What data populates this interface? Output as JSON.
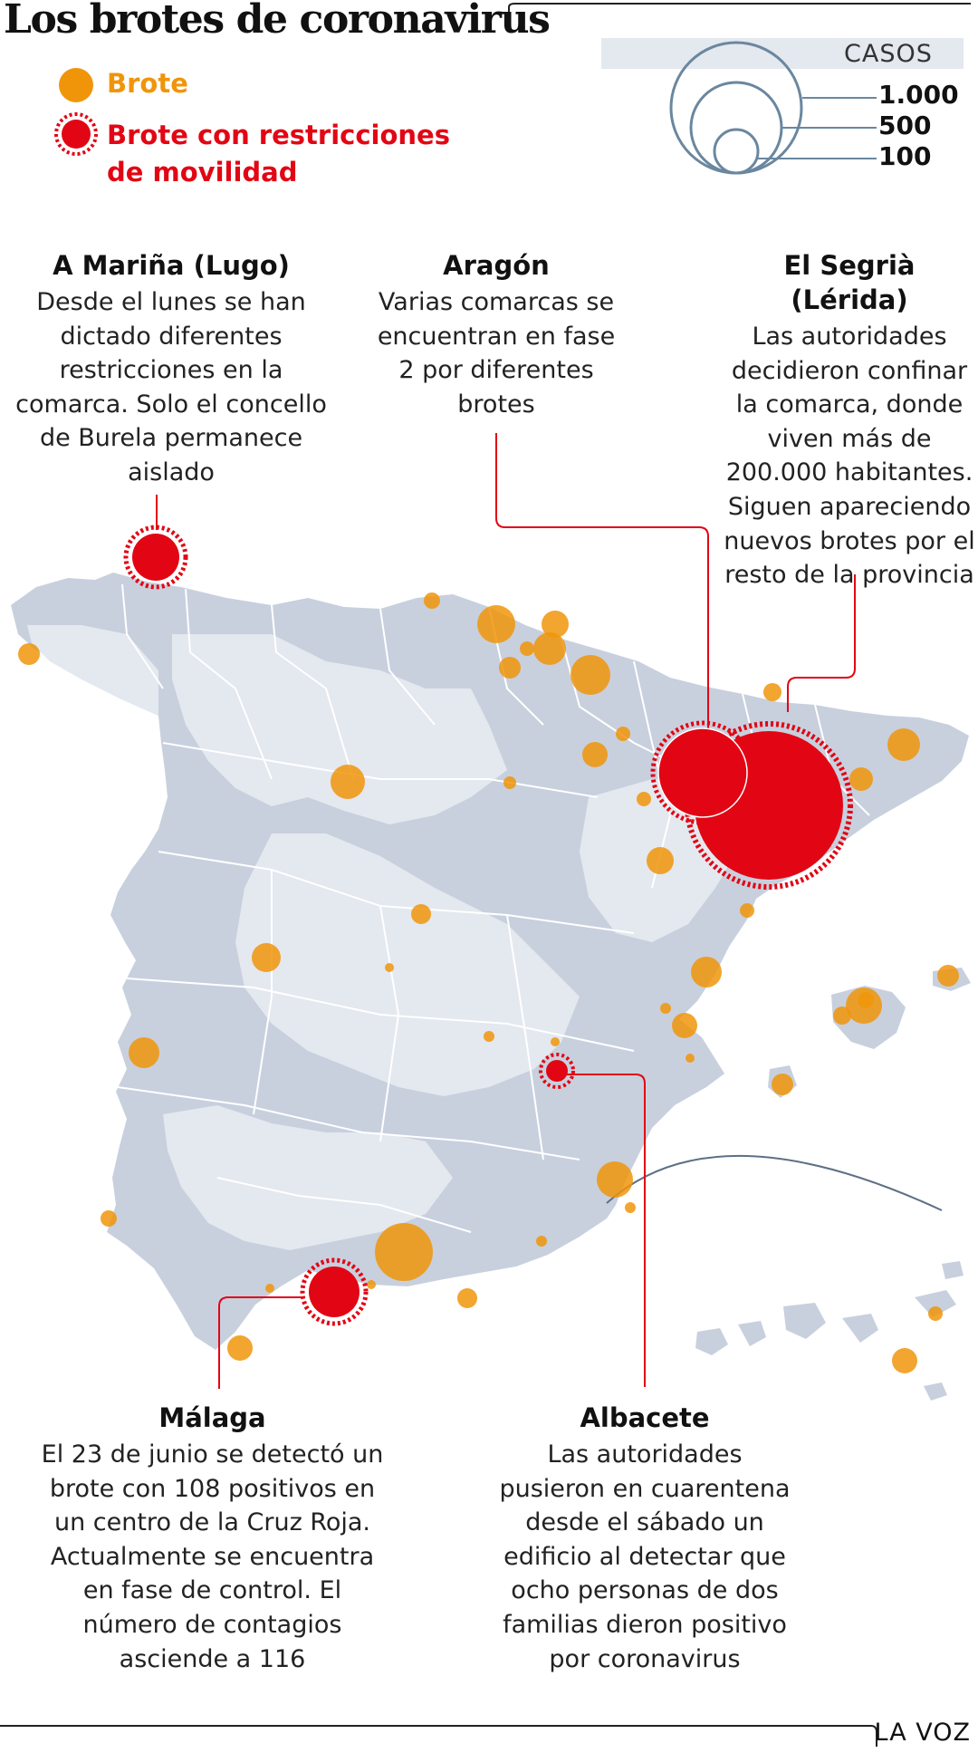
{
  "title": "Los brotes de coronavirus",
  "legend": {
    "brote": "Brote",
    "brote_restricciones": "Brote con restricciones de movilidad"
  },
  "scale": {
    "title": "CASOS",
    "values": [
      "1.000",
      "500",
      "100"
    ]
  },
  "annotations": {
    "mariña": {
      "title": "A Mariña (Lugo)",
      "text": "Desde el lunes se han dictado diferentes restricciones en la comarca. Solo el concello de Burela permanece aislado"
    },
    "aragon": {
      "title": "Aragón",
      "text": "Varias comarcas se encuentran en fase 2 por diferentes brotes"
    },
    "segria": {
      "title": "El Segrià (Lérida)",
      "text": "Las autoridades decidieron confinar la comarca, donde viven más de 200.000 habitantes. Siguen apareciendo nuevos brotes por el resto de la provincia"
    },
    "malaga": {
      "title": "Málaga",
      "text": "El 23 de junio se detectó un brote con 108 positivos en un centro de la Cruz Roja. Actualmente se encuentra en fase de control. El número de contagios asciende a 116"
    },
    "albacete": {
      "title": "Albacete",
      "text": "Las autoridades pusieron en cuarentena desde el sábado un edificio al detectar que ocho personas de dos familias dieron positivo por coronavirus"
    }
  },
  "brand": "LA VOZ",
  "colors": {
    "brote": "#f0950a",
    "brote_restricciones": "#e20614",
    "land_light": "#e4e8ef",
    "land_dark": "#c8d0de",
    "scale_circles": "#6a879f"
  }
}
